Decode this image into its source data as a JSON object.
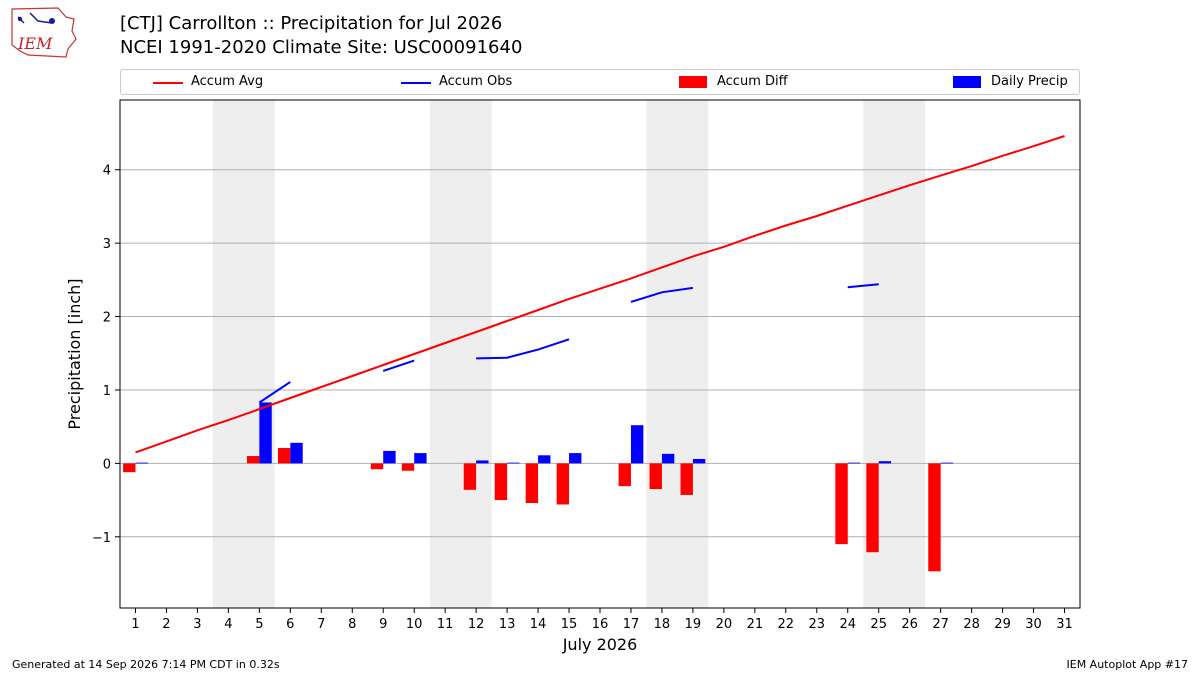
{
  "header": {
    "logo_text": "IEM",
    "title_line1": "[CTJ] Carrollton :: Precipitation for Jul 2026",
    "title_line2": "NCEI 1991-2020 Climate Site: USC00091640"
  },
  "legend": [
    {
      "label": "Accum Avg",
      "color": "#ff0000",
      "kind": "line"
    },
    {
      "label": "Accum Obs",
      "color": "#0000ff",
      "kind": "line"
    },
    {
      "label": "Accum Diff",
      "color": "#ff0000",
      "kind": "bar"
    },
    {
      "label": "Daily Precip",
      "color": "#0000ff",
      "kind": "bar"
    }
  ],
  "footer": {
    "left": "Generated at 14 Sep 2026 7:14 PM CDT in 0.32s",
    "right": "IEM Autoplot App #17"
  },
  "chart_data": {
    "type": "bar",
    "xlabel": "July 2026",
    "ylabel": "Precipitation [inch]",
    "x": [
      1,
      2,
      3,
      4,
      5,
      6,
      7,
      8,
      9,
      10,
      11,
      12,
      13,
      14,
      15,
      16,
      17,
      18,
      19,
      20,
      21,
      22,
      23,
      24,
      25,
      26,
      27,
      28,
      29,
      30,
      31
    ],
    "xlim": [
      0.5,
      31.5
    ],
    "ylim": [
      -1.97,
      4.95
    ],
    "yticks": [
      -1,
      0,
      1,
      2,
      3,
      4
    ],
    "ytick_labels": [
      "−1",
      "0",
      "1",
      "2",
      "3",
      "4"
    ],
    "grid": true,
    "weekend_shading": [
      [
        3.5,
        5.5
      ],
      [
        10.5,
        12.5
      ],
      [
        17.5,
        19.5
      ],
      [
        24.5,
        26.5
      ]
    ],
    "shading_color": "#eeeeee",
    "series": [
      {
        "name": "Accum Avg",
        "type": "line",
        "color": "#ff0000",
        "x": [
          1,
          2,
          3,
          4,
          5,
          6,
          7,
          8,
          9,
          10,
          11,
          12,
          13,
          14,
          15,
          16,
          17,
          18,
          19,
          20,
          21,
          22,
          23,
          24,
          25,
          26,
          27,
          28,
          29,
          30,
          31
        ],
        "values": [
          0.15,
          0.3,
          0.45,
          0.59,
          0.74,
          0.89,
          1.04,
          1.19,
          1.34,
          1.49,
          1.64,
          1.79,
          1.94,
          2.09,
          2.24,
          2.38,
          2.52,
          2.67,
          2.82,
          2.95,
          3.1,
          3.24,
          3.37,
          3.51,
          3.65,
          3.79,
          3.92,
          4.05,
          4.19,
          4.32,
          4.46
        ]
      },
      {
        "name": "Accum Obs",
        "type": "line",
        "color": "#0000ff",
        "x": [
          1,
          2,
          3,
          4,
          5,
          6,
          7,
          8,
          9,
          10,
          11,
          12,
          13,
          14,
          15,
          16,
          17,
          18,
          19,
          20,
          21,
          22,
          23,
          24,
          25,
          26,
          27,
          28,
          29,
          30,
          31
        ],
        "values": [
          null,
          null,
          null,
          null,
          0.83,
          1.11,
          null,
          null,
          1.26,
          1.4,
          null,
          1.43,
          1.44,
          1.55,
          1.69,
          null,
          2.2,
          2.33,
          2.39,
          null,
          null,
          null,
          null,
          2.4,
          2.44,
          null,
          null,
          null,
          null,
          null,
          null
        ]
      },
      {
        "name": "Accum Diff",
        "type": "bar",
        "color": "#ff0000",
        "x": [
          1,
          5,
          6,
          9,
          10,
          12,
          13,
          14,
          15,
          17,
          18,
          19,
          24,
          25,
          27
        ],
        "values": [
          -0.12,
          0.1,
          0.21,
          -0.08,
          -0.1,
          -0.36,
          -0.5,
          -0.54,
          -0.56,
          -0.31,
          -0.35,
          -0.43,
          -1.1,
          -1.21,
          -1.47
        ]
      },
      {
        "name": "Daily Precip",
        "type": "bar",
        "color": "#0000ff",
        "x": [
          1,
          5,
          6,
          9,
          10,
          12,
          13,
          14,
          15,
          17,
          18,
          19,
          24,
          25,
          27
        ],
        "values": [
          0.01,
          0.83,
          0.28,
          0.17,
          0.14,
          0.04,
          0.01,
          0.11,
          0.14,
          0.52,
          0.13,
          0.06,
          0.01,
          0.03,
          0.01
        ]
      }
    ]
  }
}
